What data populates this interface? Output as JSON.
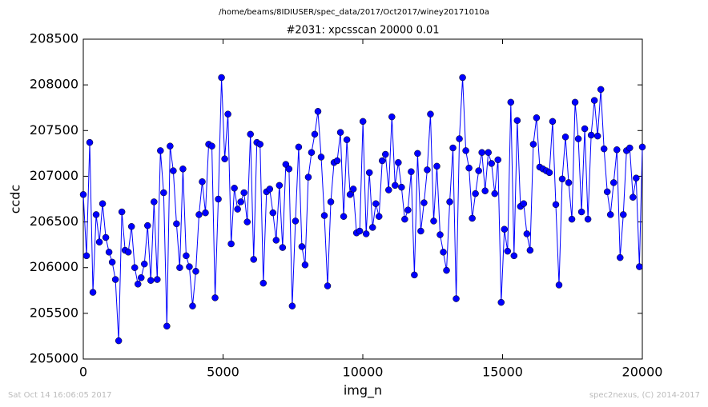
{
  "chart_data": {
    "type": "line",
    "title": "/home/beams/8IDIUSER/spec_data/2017/Oct2017/winey20171010a",
    "subtitle": "#2031: xpcsscan 20000 0.01",
    "x_label": "img_n",
    "y_label": "ccdc",
    "timestamp": "Sat Oct 14 16:06:05 2017",
    "credit": "spec2nexus, (C) 2014-2017",
    "color": "#0000ff",
    "xlim": [
      0,
      20000
    ],
    "ylim": [
      205000,
      208500
    ],
    "xticks": [
      0,
      5000,
      10000,
      15000,
      20000
    ],
    "yticks": [
      205000,
      205500,
      206000,
      206500,
      207000,
      207500,
      208000,
      208500
    ],
    "x": [
      0,
      115,
      230,
      345,
      460,
      575,
      690,
      805,
      920,
      1035,
      1150,
      1265,
      1380,
      1495,
      1610,
      1725,
      1840,
      1955,
      2070,
      2185,
      2300,
      2415,
      2530,
      2645,
      2760,
      2875,
      2990,
      3105,
      3220,
      3335,
      3450,
      3565,
      3680,
      3795,
      3910,
      4025,
      4140,
      4255,
      4370,
      4485,
      4600,
      4715,
      4830,
      4945,
      5060,
      5175,
      5290,
      5405,
      5520,
      5635,
      5750,
      5865,
      5980,
      6095,
      6210,
      6325,
      6440,
      6555,
      6670,
      6785,
      6900,
      7015,
      7130,
      7245,
      7360,
      7475,
      7590,
      7705,
      7820,
      7935,
      8050,
      8165,
      8280,
      8395,
      8510,
      8625,
      8740,
      8855,
      8970,
      9085,
      9200,
      9315,
      9430,
      9545,
      9660,
      9775,
      9890,
      10005,
      10120,
      10235,
      10350,
      10465,
      10580,
      10695,
      10810,
      10925,
      11040,
      11155,
      11270,
      11385,
      11500,
      11615,
      11730,
      11845,
      11960,
      12075,
      12190,
      12305,
      12420,
      12535,
      12650,
      12765,
      12880,
      12995,
      13110,
      13225,
      13340,
      13455,
      13570,
      13685,
      13800,
      13915,
      14030,
      14145,
      14260,
      14375,
      14490,
      14605,
      14720,
      14835,
      14950,
      15065,
      15180,
      15295,
      15410,
      15525,
      15640,
      15755,
      15870,
      15985,
      16100,
      16215,
      16330,
      16445,
      16560,
      16675,
      16790,
      16905,
      17020,
      17135,
      17250,
      17365,
      17480,
      17595,
      17710,
      17825,
      17940,
      18055,
      18170,
      18285,
      18400,
      18515,
      18630,
      18745,
      18860,
      18975,
      19090,
      19205,
      19320,
      19435,
      19550,
      19665,
      19780,
      19895,
      20000
    ],
    "values": [
      206800,
      206130,
      207370,
      205730,
      206580,
      206280,
      206700,
      206330,
      206170,
      206060,
      205870,
      205200,
      206610,
      206190,
      206170,
      206450,
      206000,
      205820,
      205890,
      206040,
      206460,
      205860,
      206720,
      205870,
      207280,
      206820,
      205360,
      207330,
      207060,
      206480,
      206000,
      207080,
      206130,
      206010,
      205580,
      205960,
      206580,
      206940,
      206600,
      207350,
      207330,
      205670,
      206750,
      208080,
      207190,
      207680,
      206260,
      206870,
      206640,
      206720,
      206820,
      206500,
      207460,
      206090,
      207370,
      207350,
      205830,
      206830,
      206860,
      206600,
      206300,
      206900,
      206220,
      207130,
      207080,
      205580,
      206510,
      207320,
      206230,
      206030,
      206990,
      207260,
      207460,
      207710,
      207210,
      206570,
      205800,
      206720,
      207150,
      207170,
      207480,
      206560,
      207400,
      206800,
      206860,
      206380,
      206400,
      207600,
      206370,
      207040,
      206440,
      206700,
      206560,
      207170,
      207240,
      206850,
      207650,
      206900,
      207150,
      206880,
      206530,
      206630,
      207050,
      205920,
      207250,
      206400,
      206710,
      207070,
      207680,
      206510,
      207110,
      206360,
      206170,
      205970,
      206720,
      207310,
      205660,
      207410,
      208080,
      207280,
      207090,
      206540,
      206810,
      207060,
      207260,
      206840,
      207260,
      207140,
      206810,
      207180,
      205620,
      206420,
      206180,
      207810,
      206130,
      207610,
      206670,
      206700,
      206370,
      206190,
      207350,
      207640,
      207100,
      207080,
      207060,
      207040,
      207600,
      206690,
      205810,
      206970,
      207430,
      206930,
      206530,
      207810,
      207410,
      206610,
      207520,
      206530,
      207450,
      207830,
      207440,
      207950,
      207300,
      206830,
      206580,
      206930,
      207290,
      206110,
      206580,
      207280,
      207310,
      206770,
      206980,
      206010,
      207320
    ]
  }
}
